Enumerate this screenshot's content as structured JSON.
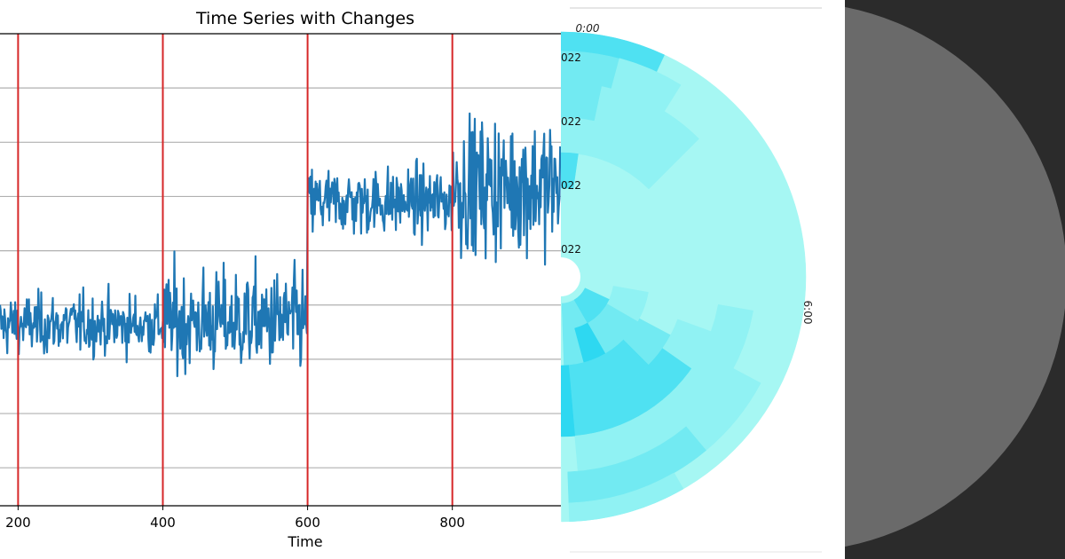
{
  "chart_data": [
    {
      "type": "line",
      "title": "Time Series with Changes",
      "xlabel": "Time",
      "ylabel": "",
      "x_ticks": [
        200,
        400,
        600,
        800
      ],
      "xlim": [
        175,
        950
      ],
      "ylim": [
        -0.35,
        4.0
      ],
      "y_gridlines": [
        0,
        0.5,
        1.0,
        1.5,
        2.0,
        2.5,
        3.0,
        3.5
      ],
      "grid": "horizontal",
      "series_color": "#1f77b4",
      "changepoints": [
        200,
        400,
        600,
        800
      ],
      "changepoint_color": "#d62728",
      "segments": [
        {
          "start": 175,
          "end": 400,
          "mean": 1.32,
          "spread": 0.35
        },
        {
          "start": 400,
          "end": 600,
          "mean": 1.35,
          "spread": 0.6
        },
        {
          "start": 600,
          "end": 800,
          "mean": 2.45,
          "spread": 0.4
        },
        {
          "start": 800,
          "end": 950,
          "mean": 2.6,
          "spread": 0.8
        }
      ],
      "y_range_observed": [
        0.45,
        3.75
      ]
    },
    {
      "type": "heatmap",
      "subtype": "radial",
      "angle_labels": [
        "0:00",
        "6:00"
      ],
      "ring_labels": [
        "022",
        "022",
        "022",
        "022"
      ],
      "colors": {
        "lightest": "#a6f7f3",
        "light": "#90f2f3",
        "medium": "#72eaf2",
        "strong": "#4fe1f2",
        "darkest": "#2ed8f1"
      }
    }
  ],
  "decoration": {
    "right_panel_background": "#2b2b2b",
    "right_circle_color": "#6a6a6a"
  }
}
